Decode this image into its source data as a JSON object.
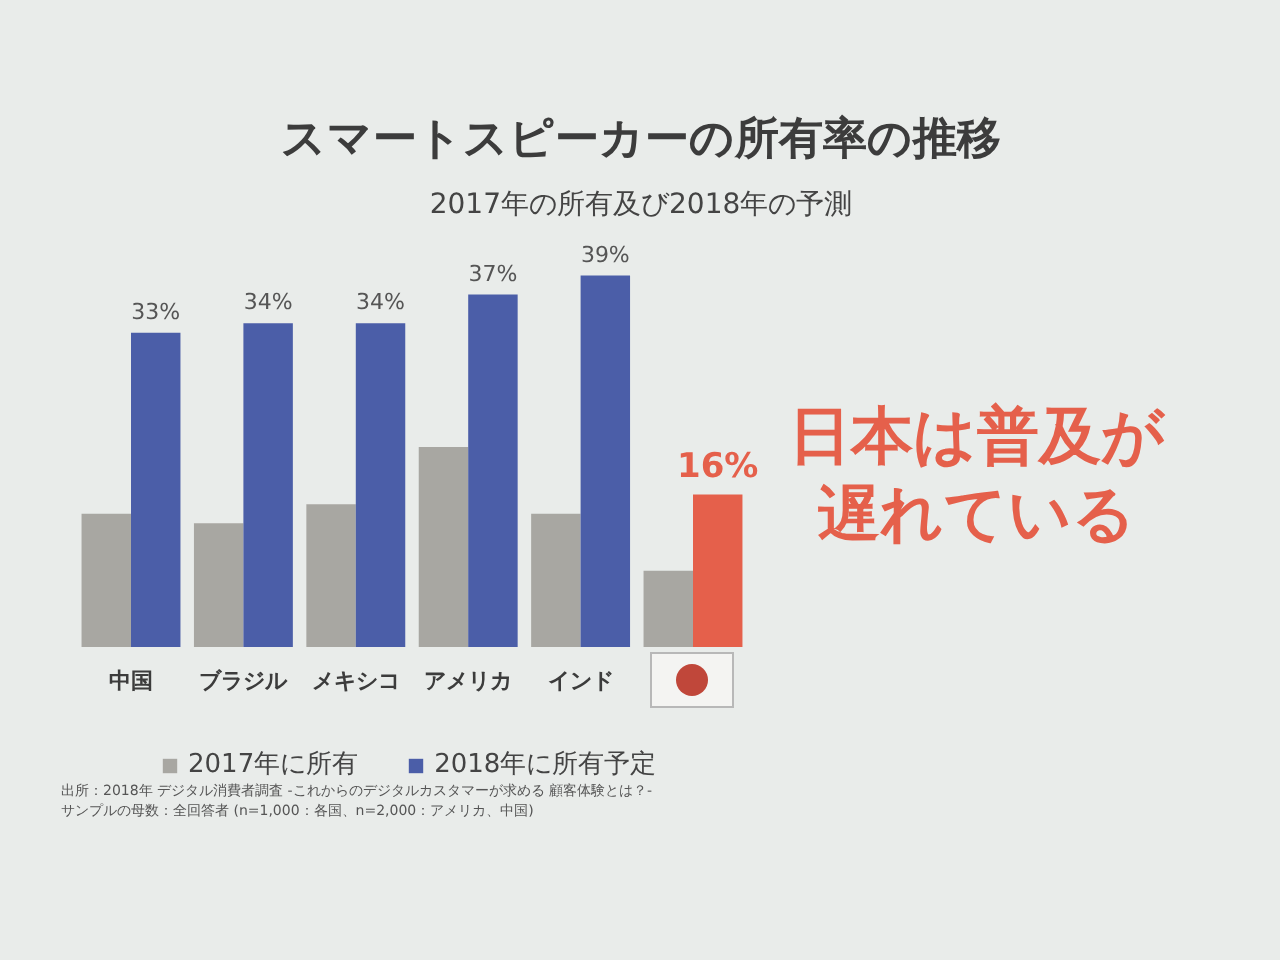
{
  "chart_data": {
    "type": "bar",
    "title": "スマートスピーカーの所有率の推移",
    "subtitle": "2017年の所有及び2018年の予測",
    "categories": [
      "中国",
      "ブラジル",
      "メキシコ",
      "アメリカ",
      "インド",
      null
    ],
    "series": [
      {
        "name": "2017年に所有",
        "color": "#a8a7a2",
        "values": [
          14,
          13,
          15,
          21,
          14,
          8
        ]
      },
      {
        "name": "2018年に所有予定",
        "color": "#4b5ea8",
        "colors": [
          "#4b5ea8",
          "#4b5ea8",
          "#4b5ea8",
          "#4b5ea8",
          "#4b5ea8",
          "#e5604b"
        ],
        "values": [
          33,
          34,
          34,
          37,
          39,
          16
        ],
        "value_labels": [
          "33%",
          "34%",
          "34%",
          "37%",
          "39%",
          "16%"
        ]
      }
    ],
    "annotations": [
      "日本は普及が遅れている",
      "出所：2018年 デジタル消費者調査 -これからのデジタルカスタマーが求める 顧客体験とは？-",
      "サンプルの母数：全回答者 (n=1,000：各国、n=2,000：アメリカ、中国)"
    ],
    "legend": "bottom"
  }
}
